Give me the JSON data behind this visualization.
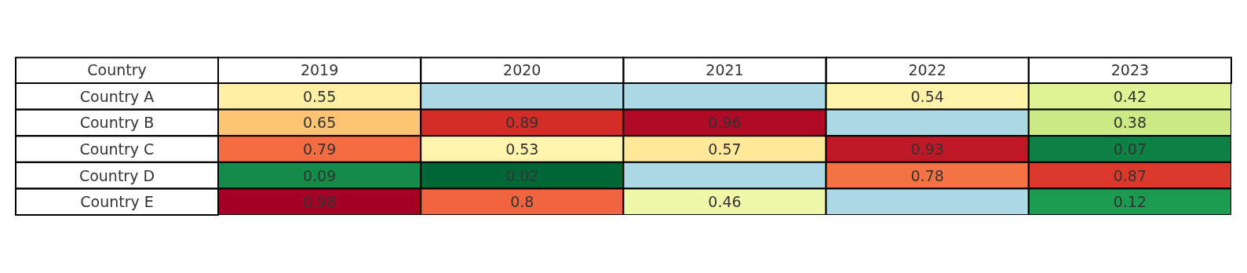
{
  "chart_data": {
    "type": "heatmap",
    "ylabel": "Country",
    "categories": [
      "2019",
      "2020",
      "2021",
      "2022",
      "2023"
    ],
    "y_categories": [
      "Country A",
      "Country B",
      "Country C",
      "Country D",
      "Country E"
    ],
    "cells": [
      [
        0.55,
        null,
        null,
        0.54,
        0.42
      ],
      [
        0.65,
        0.89,
        0.96,
        null,
        0.38
      ],
      [
        0.79,
        0.53,
        0.57,
        0.93,
        0.07
      ],
      [
        0.09,
        0.02,
        null,
        0.78,
        0.87
      ],
      [
        0.98,
        0.8,
        0.46,
        null,
        0.12
      ]
    ],
    "data_labels": true
  }
}
